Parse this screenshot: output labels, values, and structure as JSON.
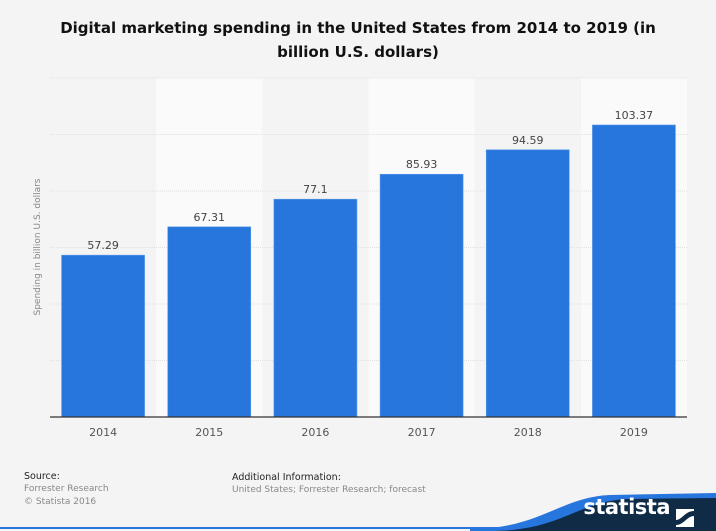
{
  "chart_data": {
    "type": "bar",
    "title": "Digital marketing spending in the United States from 2014 to 2019 (in billion U.S. dollars)",
    "xlabel": "",
    "ylabel": "Spending in billion U.S. dollars",
    "categories": [
      "2014",
      "2015",
      "2016",
      "2017",
      "2018",
      "2019"
    ],
    "values": [
      57.29,
      67.31,
      77.1,
      85.93,
      94.59,
      103.37
    ],
    "value_labels": [
      "57.29",
      "67.31",
      "77.1",
      "85.93",
      "94.59",
      "103.37"
    ],
    "ylim": [
      0,
      120
    ],
    "grid": true,
    "y_tick_labels_shown": false,
    "bar_color": "#2776dd"
  },
  "footer": {
    "source_label": "Source:",
    "source": "Forrester Research",
    "copyright": "© Statista 2016",
    "additional_label": "Additional Information:",
    "additional": "United States; Forrester Research; forecast"
  },
  "brand": {
    "name": "statista",
    "color": "#0f2b45",
    "accent": "#2776dd"
  }
}
